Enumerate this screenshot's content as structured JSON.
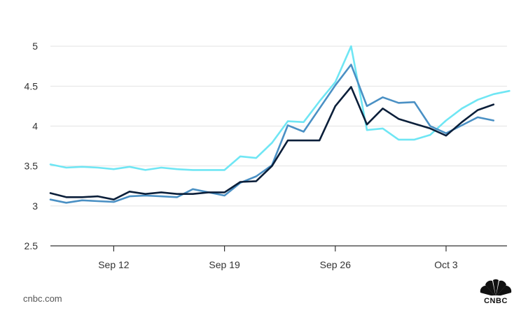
{
  "source": "cnbc.com",
  "logo_text": "CNBC",
  "logo_icon": "peacock-icon",
  "chart_data": {
    "type": "line",
    "title": "",
    "xlabel": "",
    "ylabel": "",
    "ylim": [
      2.5,
      5.5
    ],
    "yticks": [
      2.5,
      3,
      3.5,
      4,
      4.5,
      5
    ],
    "ytick_labels": [
      "2.5",
      "3",
      "3.5",
      "4",
      "4.5",
      "5"
    ],
    "x_start_date": "2022-09-08",
    "xticks": [
      {
        "date": "2022-09-12",
        "label": "Sep 12"
      },
      {
        "date": "2022-09-19",
        "label": "Sep 19"
      },
      {
        "date": "2022-09-26",
        "label": "Sep 26"
      },
      {
        "date": "2022-10-03",
        "label": "Oct 3"
      }
    ],
    "gridlines": "horizontal",
    "legend": "none",
    "series": [
      {
        "color": "#0b1f3a",
        "points": [
          [
            "2022-09-08",
            3.16
          ],
          [
            "2022-09-09",
            3.11
          ],
          [
            "2022-09-10",
            3.11
          ],
          [
            "2022-09-11",
            3.12
          ],
          [
            "2022-09-12",
            3.08
          ],
          [
            "2022-09-13",
            3.18
          ],
          [
            "2022-09-14",
            3.15
          ],
          [
            "2022-09-15",
            3.17
          ],
          [
            "2022-09-16",
            3.15
          ],
          [
            "2022-09-17",
            3.15
          ],
          [
            "2022-09-18",
            3.17
          ],
          [
            "2022-09-19",
            3.17
          ],
          [
            "2022-09-20",
            3.3
          ],
          [
            "2022-09-21",
            3.31
          ],
          [
            "2022-09-22",
            3.5
          ],
          [
            "2022-09-23",
            3.82
          ],
          [
            "2022-09-24",
            3.82
          ],
          [
            "2022-09-25",
            3.82
          ],
          [
            "2022-09-26",
            4.25
          ],
          [
            "2022-09-27",
            4.49
          ],
          [
            "2022-09-28",
            4.02
          ],
          [
            "2022-09-29",
            4.22
          ],
          [
            "2022-09-30",
            4.09
          ],
          [
            "2022-10-01",
            4.03
          ],
          [
            "2022-10-02",
            3.97
          ],
          [
            "2022-10-03",
            3.88
          ],
          [
            "2022-10-04",
            4.05
          ],
          [
            "2022-10-05",
            4.2
          ],
          [
            "2022-10-06",
            4.27
          ]
        ]
      },
      {
        "color": "#4a90c4",
        "points": [
          [
            "2022-09-08",
            3.08
          ],
          [
            "2022-09-09",
            3.04
          ],
          [
            "2022-09-10",
            3.07
          ],
          [
            "2022-09-11",
            3.06
          ],
          [
            "2022-09-12",
            3.05
          ],
          [
            "2022-09-13",
            3.12
          ],
          [
            "2022-09-14",
            3.13
          ],
          [
            "2022-09-15",
            3.12
          ],
          [
            "2022-09-16",
            3.11
          ],
          [
            "2022-09-17",
            3.21
          ],
          [
            "2022-09-18",
            3.17
          ],
          [
            "2022-09-19",
            3.13
          ],
          [
            "2022-09-20",
            3.29
          ],
          [
            "2022-09-21",
            3.37
          ],
          [
            "2022-09-22",
            3.51
          ],
          [
            "2022-09-23",
            4.01
          ],
          [
            "2022-09-24",
            3.93
          ],
          [
            "2022-09-25",
            4.22
          ],
          [
            "2022-09-26",
            4.51
          ],
          [
            "2022-09-27",
            4.77
          ],
          [
            "2022-09-28",
            4.25
          ],
          [
            "2022-09-29",
            4.36
          ],
          [
            "2022-09-30",
            4.29
          ],
          [
            "2022-10-01",
            4.3
          ],
          [
            "2022-10-02",
            4.0
          ],
          [
            "2022-10-03",
            3.91
          ],
          [
            "2022-10-04",
            4.01
          ],
          [
            "2022-10-05",
            4.11
          ],
          [
            "2022-10-06",
            4.07
          ]
        ]
      },
      {
        "color": "#6fe6f4",
        "points": [
          [
            "2022-09-08",
            3.52
          ],
          [
            "2022-09-09",
            3.48
          ],
          [
            "2022-09-10",
            3.49
          ],
          [
            "2022-09-11",
            3.48
          ],
          [
            "2022-09-12",
            3.46
          ],
          [
            "2022-09-13",
            3.49
          ],
          [
            "2022-09-14",
            3.45
          ],
          [
            "2022-09-15",
            3.48
          ],
          [
            "2022-09-16",
            3.46
          ],
          [
            "2022-09-17",
            3.45
          ],
          [
            "2022-09-18",
            3.45
          ],
          [
            "2022-09-19",
            3.45
          ],
          [
            "2022-09-20",
            3.62
          ],
          [
            "2022-09-21",
            3.6
          ],
          [
            "2022-09-22",
            3.79
          ],
          [
            "2022-09-23",
            4.06
          ],
          [
            "2022-09-24",
            4.05
          ],
          [
            "2022-09-25",
            4.31
          ],
          [
            "2022-09-26",
            4.55
          ],
          [
            "2022-09-27",
            5.0
          ],
          [
            "2022-09-28",
            3.95
          ],
          [
            "2022-09-29",
            3.97
          ],
          [
            "2022-09-30",
            3.83
          ],
          [
            "2022-10-01",
            3.83
          ],
          [
            "2022-10-02",
            3.89
          ],
          [
            "2022-10-03",
            4.07
          ],
          [
            "2022-10-04",
            4.22
          ],
          [
            "2022-10-05",
            4.33
          ],
          [
            "2022-10-06",
            4.4
          ],
          [
            "2022-10-07",
            4.44
          ]
        ]
      }
    ]
  }
}
